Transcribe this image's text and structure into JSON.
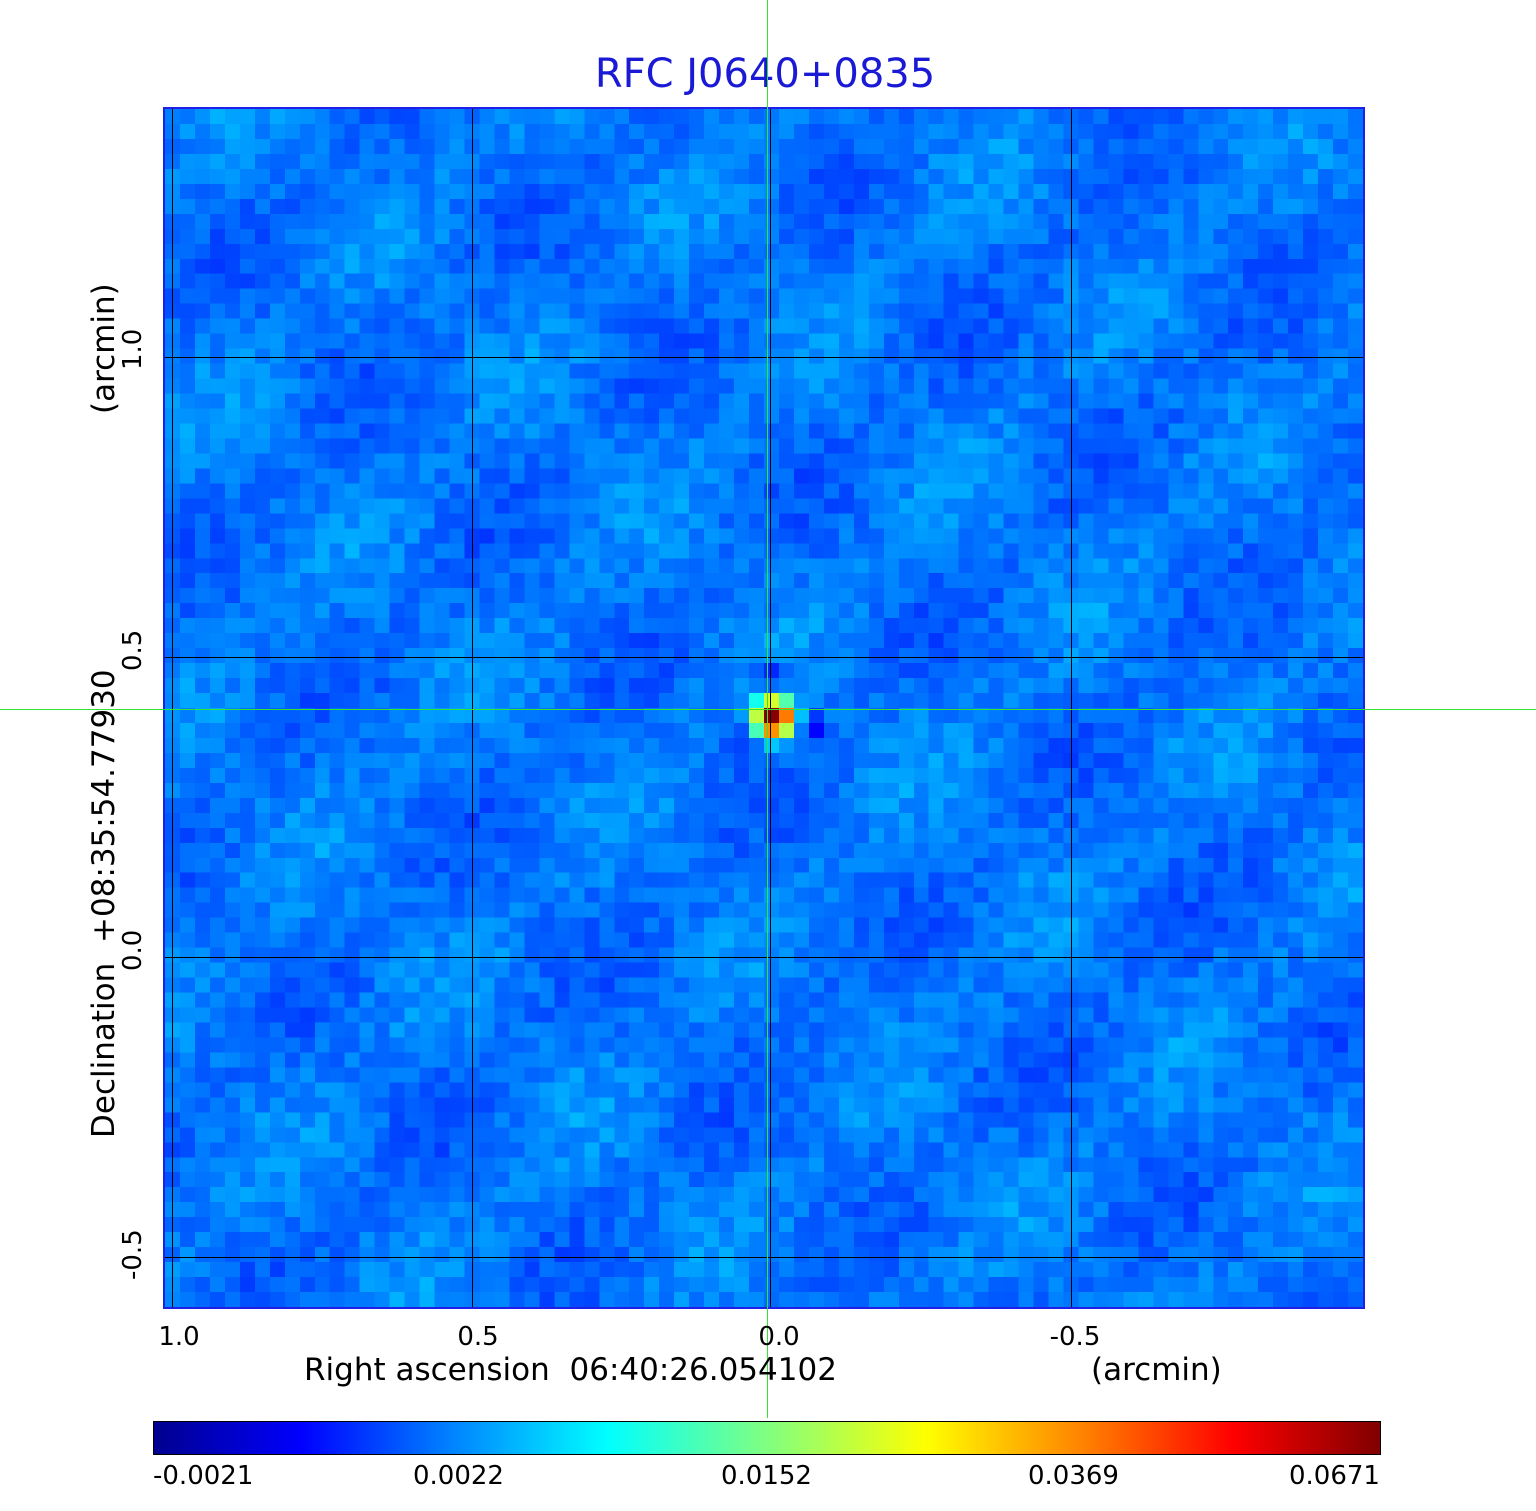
{
  "title": "RFC J0640+0835",
  "x_axis": {
    "label": "Right ascension",
    "center": "06:40:26.054102",
    "unit": "(arcmin)",
    "ticks": [
      "1.0",
      "0.5",
      "0.0",
      "-0.5"
    ]
  },
  "y_axis": {
    "label": "Declination",
    "center": "+08:35:54.77930",
    "unit": "(arcmin)",
    "ticks": [
      "1.0",
      "0.5",
      "0.0",
      "-0.5"
    ]
  },
  "image": {
    "colormap": "jet",
    "background_color": "#1460ec",
    "frame_color": "#1f1fe8",
    "title_color": "#1a1ad6",
    "crosshair_color": "#33e533",
    "grid_color": "#000000",
    "source_position_arcmin": {
      "ra_offset": 0.0,
      "dec_offset": 0.41
    },
    "peak_value": 0.0671
  },
  "colorbar": {
    "ticks": [
      "-0.0021",
      "0.0022",
      "0.0152",
      "0.0369",
      "0.0671"
    ]
  }
}
